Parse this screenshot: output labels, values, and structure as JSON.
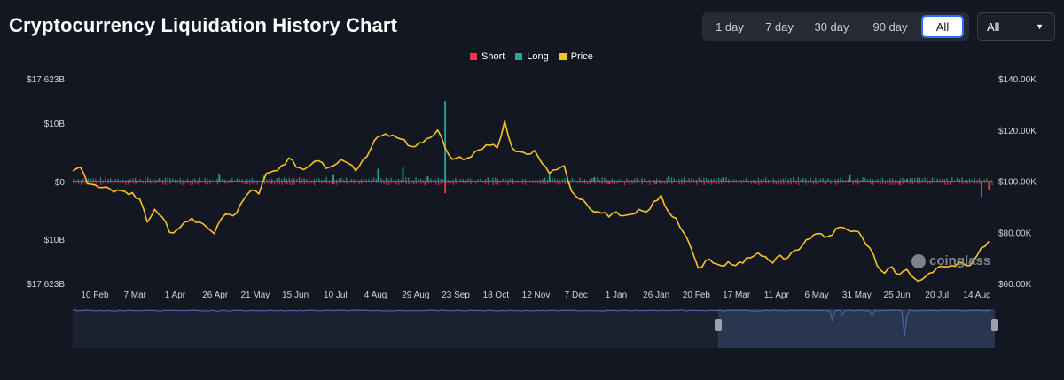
{
  "header": {
    "title": "Cryptocurrency Liquidation History Chart"
  },
  "range_buttons": [
    {
      "label": "1 day",
      "active": false
    },
    {
      "label": "7 day",
      "active": false
    },
    {
      "label": "30 day",
      "active": false
    },
    {
      "label": "90 day",
      "active": false
    },
    {
      "label": "All",
      "active": true
    }
  ],
  "symbol_select": {
    "value": "All"
  },
  "watermark": "coinglass",
  "colors": {
    "short": "#f23645",
    "long": "#26a69a",
    "price": "#f7c325",
    "background": "#131722",
    "navigator": "#1e2a44"
  },
  "chart_data": {
    "type": "bar",
    "legend": [
      "Short",
      "Long",
      "Price"
    ],
    "legend_position": "top-center",
    "grid": false,
    "x_tick_labels": [
      "10 Feb",
      "7 Mar",
      "1 Apr",
      "26 Apr",
      "21 May",
      "15 Jun",
      "10 Jul",
      "4 Aug",
      "29 Aug",
      "23 Sep",
      "18 Oct",
      "12 Nov",
      "7 Dec",
      "1 Jan",
      "26 Jan",
      "20 Feb",
      "17 Mar",
      "11 Apr",
      "6 May",
      "31 May",
      "25 Jun",
      "20 Jul",
      "14 Aug"
    ],
    "left_axis": {
      "ticks": [
        "$17.623B",
        "$10B",
        "$0",
        "$10B",
        "$17.623B"
      ],
      "range": [
        -17.623,
        17.623
      ],
      "unit": "B USD"
    },
    "right_axis": {
      "ticks": [
        "$140.00K",
        "$120.00K",
        "$100.00K",
        "$80.00K",
        "$60.00K"
      ],
      "range": [
        60000,
        140000
      ],
      "unit": "USD"
    },
    "series": [
      {
        "name": "Price",
        "kind": "line",
        "axis": "right",
        "values": [
          [
            0,
            104000
          ],
          [
            3,
            105500
          ],
          [
            6,
            99000
          ],
          [
            9,
            98500
          ],
          [
            12,
            97500
          ],
          [
            15,
            97000
          ],
          [
            18,
            96500
          ],
          [
            21,
            96000
          ],
          [
            24,
            95500
          ],
          [
            27,
            93000
          ],
          [
            30,
            84000
          ],
          [
            33,
            89000
          ],
          [
            36,
            86000
          ],
          [
            39,
            80000
          ],
          [
            42,
            81000
          ],
          [
            45,
            84000
          ],
          [
            48,
            85500
          ],
          [
            51,
            84000
          ],
          [
            54,
            82000
          ],
          [
            57,
            79500
          ],
          [
            60,
            85500
          ],
          [
            63,
            87000
          ],
          [
            66,
            87500
          ],
          [
            69,
            93000
          ],
          [
            72,
            96500
          ],
          [
            75,
            95000
          ],
          [
            78,
            103000
          ],
          [
            81,
            104000
          ],
          [
            84,
            106000
          ],
          [
            87,
            109000
          ],
          [
            90,
            105500
          ],
          [
            93,
            104500
          ],
          [
            96,
            106500
          ],
          [
            99,
            108000
          ],
          [
            102,
            105000
          ],
          [
            105,
            106000
          ],
          [
            108,
            108500
          ],
          [
            111,
            107000
          ],
          [
            114,
            104000
          ],
          [
            117,
            108500
          ],
          [
            120,
            112500
          ],
          [
            123,
            117500
          ],
          [
            126,
            118500
          ],
          [
            129,
            118000
          ],
          [
            132,
            116500
          ],
          [
            135,
            114000
          ],
          [
            138,
            113500
          ],
          [
            141,
            115000
          ],
          [
            144,
            117000
          ],
          [
            147,
            120000
          ],
          [
            150,
            113000
          ],
          [
            153,
            108500
          ],
          [
            156,
            109500
          ],
          [
            159,
            109000
          ],
          [
            162,
            111500
          ],
          [
            165,
            112500
          ],
          [
            168,
            114000
          ],
          [
            171,
            113000
          ],
          [
            174,
            123500
          ],
          [
            177,
            113000
          ],
          [
            180,
            111500
          ],
          [
            183,
            110500
          ],
          [
            186,
            112000
          ],
          [
            189,
            107000
          ],
          [
            192,
            103000
          ],
          [
            195,
            104500
          ],
          [
            198,
            106000
          ],
          [
            201,
            96000
          ],
          [
            204,
            93000
          ],
          [
            207,
            91000
          ],
          [
            210,
            88000
          ],
          [
            213,
            87500
          ],
          [
            216,
            86000
          ],
          [
            219,
            88000
          ],
          [
            222,
            86500
          ],
          [
            225,
            87000
          ],
          [
            228,
            89000
          ],
          [
            231,
            88000
          ],
          [
            234,
            92000
          ],
          [
            237,
            94500
          ],
          [
            240,
            88000
          ],
          [
            243,
            85500
          ],
          [
            246,
            80000
          ],
          [
            249,
            74000
          ],
          [
            252,
            66000
          ],
          [
            255,
            69000
          ],
          [
            258,
            68000
          ],
          [
            261,
            67000
          ],
          [
            264,
            68500
          ],
          [
            267,
            67000
          ],
          [
            270,
            68000
          ],
          [
            273,
            70000
          ],
          [
            276,
            72000
          ],
          [
            279,
            70500
          ],
          [
            282,
            68000
          ],
          [
            285,
            71000
          ],
          [
            288,
            70000
          ],
          [
            291,
            73000
          ],
          [
            294,
            75000
          ],
          [
            297,
            77500
          ],
          [
            300,
            79500
          ],
          [
            303,
            78000
          ],
          [
            306,
            79000
          ],
          [
            309,
            82000
          ],
          [
            312,
            81000
          ],
          [
            315,
            80500
          ],
          [
            318,
            78000
          ],
          [
            321,
            74000
          ],
          [
            324,
            67000
          ],
          [
            327,
            64000
          ],
          [
            330,
            66500
          ],
          [
            333,
            63500
          ],
          [
            336,
            65500
          ],
          [
            339,
            62000
          ],
          [
            342,
            61500
          ],
          [
            345,
            64000
          ],
          [
            348,
            66000
          ],
          [
            351,
            66500
          ],
          [
            354,
            67000
          ],
          [
            357,
            68500
          ],
          [
            360,
            67000
          ],
          [
            363,
            69000
          ],
          [
            366,
            74000
          ],
          [
            369,
            76500
          ]
        ]
      },
      {
        "name": "Long",
        "kind": "bar",
        "axis": "left",
        "values": [
          [
            150,
            13.8
          ],
          [
            133,
            2.4
          ],
          [
            123,
            2.2
          ],
          [
            105,
            1.1
          ],
          [
            59,
            1.2
          ],
          [
            77,
            1.0
          ],
          [
            192,
            1.2
          ],
          [
            240,
            0.9
          ],
          [
            313,
            1.1
          ],
          [
            336,
            0.5
          ],
          [
            262,
            0.7
          ],
          [
            210,
            0.7
          ],
          [
            35,
            0.6
          ],
          [
            143,
            0.9
          ]
        ]
      },
      {
        "name": "Short",
        "kind": "bar",
        "axis": "left",
        "values": [
          [
            150,
            -2.0
          ],
          [
            142,
            -0.6
          ],
          [
            105,
            -0.5
          ],
          [
            80,
            -0.4
          ],
          [
            216,
            -0.4
          ],
          [
            235,
            -0.5
          ],
          [
            303,
            -0.3
          ],
          [
            333,
            -0.6
          ],
          [
            366,
            -2.7
          ],
          [
            369,
            -1.4
          ]
        ]
      }
    ]
  }
}
